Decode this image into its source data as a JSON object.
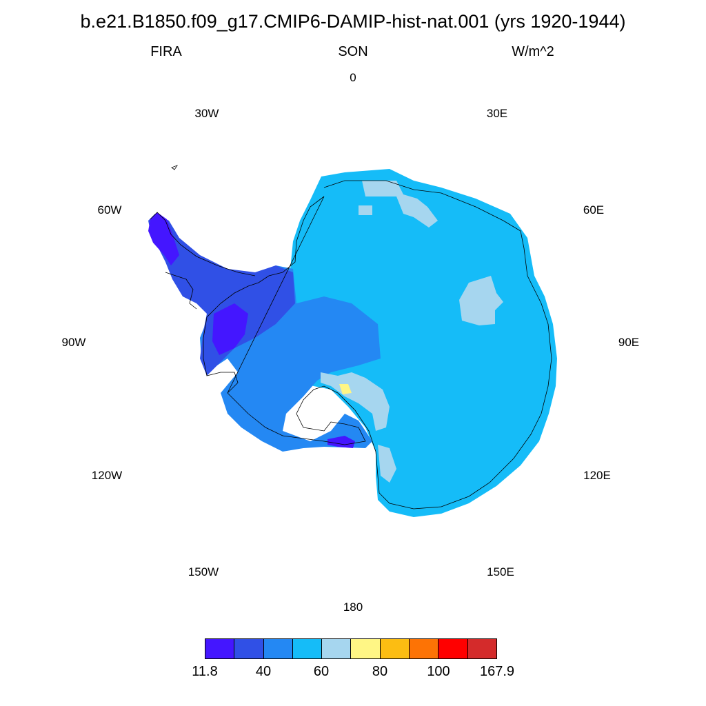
{
  "header": {
    "title": "b.e21.B1850.f09_g17.CMIP6-DAMIP-hist-nat.001 (yrs 1920-1944)",
    "variable": "FIRA",
    "season": "SON",
    "units": "W/m^2"
  },
  "longitude_labels": [
    "0",
    "30E",
    "60E",
    "90E",
    "120E",
    "150E",
    "180",
    "150W",
    "120W",
    "90W",
    "60W",
    "30W"
  ],
  "colorbar": {
    "colors": [
      "#4416ff",
      "#3050e6",
      "#2488f3",
      "#15bcf8",
      "#a6d6ef",
      "#fff685",
      "#fcbd12",
      "#fd7305",
      "#ff0000",
      "#d42b2b"
    ],
    "labels": [
      "11.8",
      "40",
      "60",
      "80",
      "100",
      "167.9"
    ]
  },
  "map_colors": {
    "interior": "#15bcf8",
    "ross_area": "#2488f3",
    "peninsula": "#3050e6",
    "peninsula_tip": "#4416ff",
    "light": "#a6d6ef",
    "yellow": "#fff685",
    "coastline": "#000000"
  }
}
